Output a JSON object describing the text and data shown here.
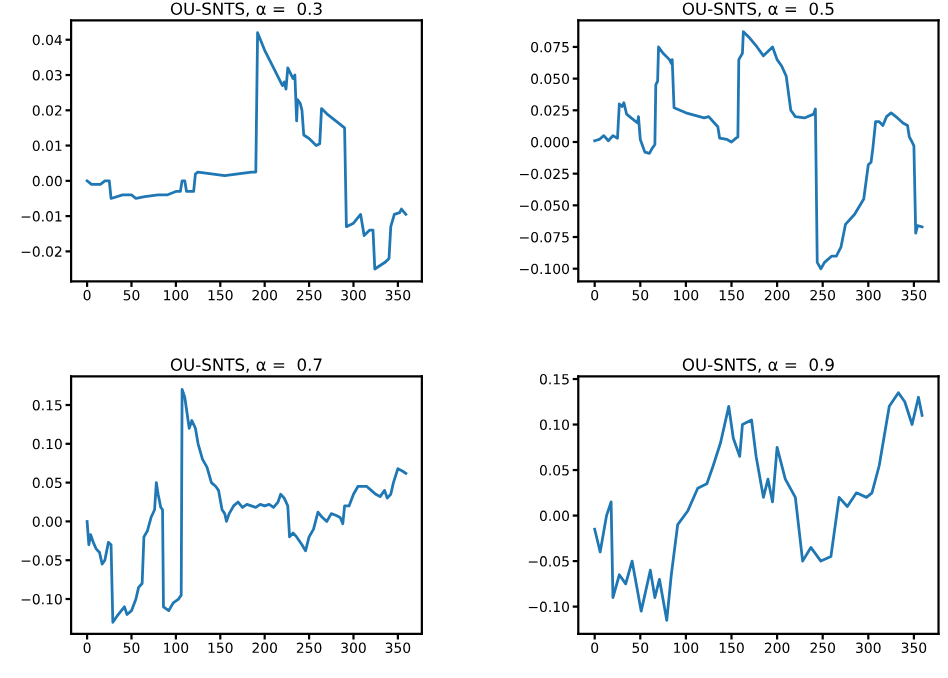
{
  "chart_data": [
    {
      "type": "line",
      "title": "OU-SNTS, α =  0.3",
      "xlim": [
        -18,
        377
      ],
      "ylim": [
        -0.0285,
        0.0455
      ],
      "xticks": [
        0,
        50,
        100,
        150,
        200,
        250,
        300,
        350
      ],
      "yticks": [
        {
          "value": -0.02,
          "label": "−0.02"
        },
        {
          "value": -0.01,
          "label": "−0.01"
        },
        {
          "value": 0,
          "label": "0.00"
        },
        {
          "value": 0.01,
          "label": "0.01"
        },
        {
          "value": 0.02,
          "label": "0.02"
        },
        {
          "value": 0.03,
          "label": "0.03"
        },
        {
          "value": 0.04,
          "label": "0.04"
        }
      ],
      "grid": false,
      "legend": false,
      "series": [
        {
          "color": "#1f77b4",
          "x": [
            0,
            5,
            15,
            20,
            25,
            27,
            40,
            50,
            55,
            65,
            80,
            90,
            95,
            100,
            105,
            107,
            110,
            112,
            120,
            122,
            125,
            140,
            155,
            170,
            185,
            190,
            192,
            200,
            210,
            220,
            222,
            224,
            226,
            230,
            232,
            234,
            236,
            237,
            240,
            242,
            244,
            250,
            258,
            262,
            264,
            270,
            280,
            290,
            292,
            300,
            308,
            312,
            318,
            322,
            324,
            330,
            336,
            340,
            342,
            346,
            352,
            354,
            359
          ],
          "values": [
            0.0,
            -0.001,
            -0.001,
            0.0,
            0.0,
            -0.005,
            -0.004,
            -0.004,
            -0.005,
            -0.0045,
            -0.004,
            -0.004,
            -0.0035,
            -0.003,
            -0.003,
            0.0,
            0.0,
            -0.003,
            -0.003,
            0.002,
            0.0025,
            0.002,
            0.0015,
            0.002,
            0.0025,
            0.0025,
            0.042,
            0.037,
            0.032,
            0.027,
            0.028,
            0.026,
            0.032,
            0.03,
            0.029,
            0.03,
            0.017,
            0.023,
            0.022,
            0.02,
            0.013,
            0.012,
            0.01,
            0.0105,
            0.0205,
            0.019,
            0.017,
            0.015,
            -0.013,
            -0.012,
            -0.0095,
            -0.0155,
            -0.014,
            -0.014,
            -0.025,
            -0.024,
            -0.023,
            -0.022,
            -0.013,
            -0.0095,
            -0.009,
            -0.008,
            -0.0095
          ]
        }
      ]
    },
    {
      "type": "line",
      "title": "OU-SNTS, α =  0.5",
      "xlim": [
        -18,
        377
      ],
      "ylim": [
        -0.11,
        0.096
      ],
      "xticks": [
        0,
        50,
        100,
        150,
        200,
        250,
        300,
        350
      ],
      "yticks": [
        {
          "value": -0.1,
          "label": "−0.100"
        },
        {
          "value": -0.075,
          "label": "−0.075"
        },
        {
          "value": -0.05,
          "label": "−0.050"
        },
        {
          "value": -0.025,
          "label": "−0.025"
        },
        {
          "value": 0,
          "label": "0.000"
        },
        {
          "value": 0.025,
          "label": "0.025"
        },
        {
          "value": 0.05,
          "label": "0.050"
        },
        {
          "value": 0.075,
          "label": "0.075"
        }
      ],
      "grid": false,
      "legend": false,
      "series": [
        {
          "color": "#1f77b4",
          "x": [
            0,
            5,
            10,
            15,
            20,
            25,
            27,
            30,
            32,
            35,
            40,
            47,
            48,
            50,
            55,
            60,
            63,
            66,
            67,
            69,
            70,
            75,
            82,
            84,
            85,
            87,
            100,
            115,
            120,
            125,
            130,
            135,
            137,
            145,
            150,
            155,
            157,
            158,
            162,
            163,
            170,
            178,
            185,
            195,
            200,
            205,
            210,
            215,
            220,
            230,
            240,
            242,
            244,
            248,
            252,
            260,
            265,
            270,
            275,
            285,
            295,
            300,
            303,
            305,
            308,
            312,
            316,
            320,
            325,
            332,
            338,
            343,
            345,
            348,
            350,
            352,
            354,
            359
          ],
          "values": [
            0.001,
            0.002,
            0.005,
            0.001,
            0.005,
            0.003,
            0.03,
            0.028,
            0.031,
            0.022,
            0.019,
            0.015,
            0.02,
            0.002,
            -0.008,
            -0.009,
            -0.005,
            -0.002,
            0.045,
            0.048,
            0.075,
            0.07,
            0.065,
            0.062,
            0.065,
            0.027,
            0.023,
            0.02,
            0.019,
            0.02,
            0.016,
            0.012,
            0.003,
            0.002,
            0.0,
            0.003,
            0.004,
            0.065,
            0.07,
            0.087,
            0.082,
            0.075,
            0.068,
            0.075,
            0.065,
            0.06,
            0.052,
            0.025,
            0.02,
            0.019,
            0.022,
            0.026,
            -0.095,
            -0.1,
            -0.095,
            -0.09,
            -0.09,
            -0.083,
            -0.065,
            -0.057,
            -0.045,
            -0.018,
            -0.016,
            -0.005,
            0.016,
            0.016,
            0.013,
            0.02,
            0.023,
            0.019,
            0.015,
            0.013,
            0.004,
            0.0,
            -0.003,
            -0.072,
            -0.066,
            -0.067
          ]
        }
      ]
    },
    {
      "type": "line",
      "title": "OU-SNTS, α =  0.7",
      "xlim": [
        -18,
        377
      ],
      "ylim": [
        -0.145,
        0.187
      ],
      "xticks": [
        0,
        50,
        100,
        150,
        200,
        250,
        300,
        350
      ],
      "yticks": [
        {
          "value": -0.1,
          "label": "−0.10"
        },
        {
          "value": -0.05,
          "label": "−0.05"
        },
        {
          "value": 0,
          "label": "0.00"
        },
        {
          "value": 0.05,
          "label": "0.05"
        },
        {
          "value": 0.1,
          "label": "0.10"
        },
        {
          "value": 0.15,
          "label": "0.15"
        }
      ],
      "grid": false,
      "legend": false,
      "series": [
        {
          "color": "#1f77b4",
          "x": [
            0,
            2,
            4,
            7,
            10,
            14,
            17,
            20,
            24,
            27,
            29,
            35,
            42,
            45,
            50,
            55,
            58,
            62,
            64,
            68,
            72,
            76,
            78,
            80,
            83,
            85,
            86,
            92,
            97,
            103,
            106,
            107,
            110,
            115,
            118,
            122,
            125,
            130,
            135,
            140,
            145,
            148,
            152,
            155,
            157,
            160,
            165,
            170,
            175,
            180,
            185,
            190,
            195,
            200,
            205,
            210,
            215,
            218,
            222,
            226,
            228,
            232,
            236,
            242,
            246,
            250,
            255,
            260,
            265,
            270,
            275,
            280,
            285,
            288,
            290,
            295,
            300,
            305,
            310,
            315,
            320,
            325,
            330,
            335,
            338,
            342,
            345,
            350,
            355,
            359
          ],
          "values": [
            0.0,
            -0.03,
            -0.017,
            -0.027,
            -0.035,
            -0.04,
            -0.055,
            -0.05,
            -0.027,
            -0.03,
            -0.13,
            -0.12,
            -0.11,
            -0.12,
            -0.115,
            -0.1,
            -0.085,
            -0.08,
            -0.02,
            -0.012,
            0.005,
            0.015,
            0.05,
            0.035,
            0.018,
            0.015,
            -0.11,
            -0.115,
            -0.105,
            -0.1,
            -0.095,
            0.17,
            0.16,
            0.12,
            0.13,
            0.12,
            0.1,
            0.08,
            0.07,
            0.05,
            0.045,
            0.04,
            0.015,
            0.01,
            0.0,
            0.01,
            0.02,
            0.025,
            0.018,
            0.022,
            0.02,
            0.018,
            0.022,
            0.02,
            0.022,
            0.018,
            0.025,
            0.035,
            0.03,
            0.02,
            -0.02,
            -0.015,
            -0.02,
            -0.03,
            -0.038,
            -0.02,
            -0.01,
            0.012,
            0.005,
            0.0,
            0.01,
            0.008,
            0.005,
            -0.003,
            0.02,
            0.02,
            0.035,
            0.045,
            0.045,
            0.045,
            0.04,
            0.035,
            0.032,
            0.04,
            0.03,
            0.035,
            0.05,
            0.068,
            0.065,
            0.062
          ]
        }
      ]
    },
    {
      "type": "line",
      "title": "OU-SNTS, α =  0.9",
      "xlim": [
        -18,
        377
      ],
      "ylim": [
        -0.13,
        0.153
      ],
      "xticks": [
        0,
        50,
        100,
        150,
        200,
        250,
        300,
        350
      ],
      "yticks": [
        {
          "value": -0.1,
          "label": "−0.10"
        },
        {
          "value": -0.05,
          "label": "−0.05"
        },
        {
          "value": 0,
          "label": "0.00"
        },
        {
          "value": 0.05,
          "label": "0.05"
        },
        {
          "value": 0.1,
          "label": "0.10"
        },
        {
          "value": 0.15,
          "label": "0.15"
        }
      ],
      "grid": false,
      "legend": false,
      "series": [
        {
          "color": "#1f77b4",
          "x": [
            0,
            6,
            13,
            18,
            20,
            27,
            34,
            41,
            51,
            61,
            66,
            71,
            79,
            84,
            91,
            102,
            113,
            123,
            130,
            138,
            147,
            152,
            159,
            162,
            172,
            177,
            185,
            190,
            195,
            200,
            209,
            220,
            228,
            237,
            248,
            259,
            268,
            277,
            287,
            298,
            304,
            312,
            323,
            333,
            340,
            348,
            355,
            359
          ],
          "values": [
            -0.015,
            -0.04,
            0.0,
            0.015,
            -0.09,
            -0.065,
            -0.075,
            -0.05,
            -0.105,
            -0.06,
            -0.09,
            -0.07,
            -0.115,
            -0.065,
            -0.01,
            0.005,
            0.03,
            0.035,
            0.055,
            0.08,
            0.12,
            0.085,
            0.065,
            0.1,
            0.105,
            0.065,
            0.02,
            0.04,
            0.015,
            0.075,
            0.04,
            0.02,
            -0.05,
            -0.035,
            -0.05,
            -0.045,
            0.02,
            0.01,
            0.025,
            0.02,
            0.025,
            0.055,
            0.12,
            0.135,
            0.125,
            0.1,
            0.13,
            0.11
          ]
        }
      ]
    }
  ]
}
